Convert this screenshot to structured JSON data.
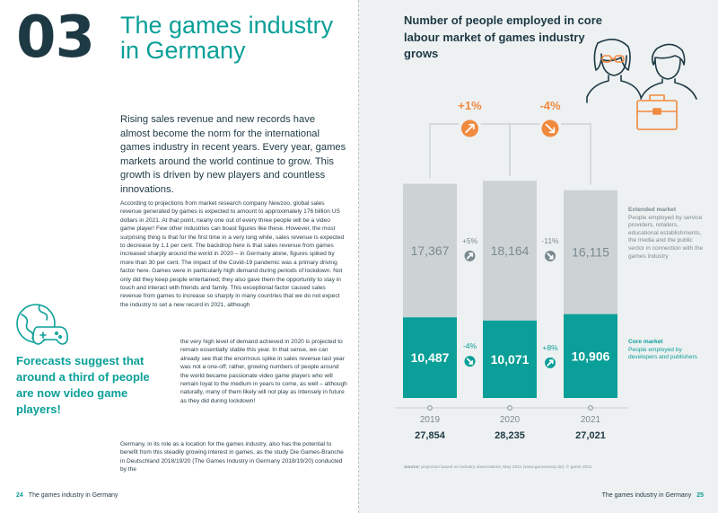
{
  "left_page": {
    "chapter_number": "03",
    "chapter_title": "The games industry in Germany",
    "lead": "Rising sales revenue and new records have almost become the norm for the international games industry in recent years. Every year, games markets around the world continue to grow. This growth is driven by new players and countless innovations.",
    "body_1": "According to projections from market research company Newzoo, global sales revenue generated by games is expected to amount to approximately 176 billion US dollars in 2021. At that point, nearly one out of every three people will be a video game player! Few other industries can boast figures like these. However, the most surprising thing is that for the first time in a very long while, sales revenue is expected to decrease by 1.1 per cent. The backdrop here is that sales revenue from games increased sharply around the world in 2020 – in Germany alone, figures spiked by more than 30 per cent. The impact of the Covid-19 pandemic was a primary driving factor here. Games were in particularly high demand during periods of lockdown. Not only did they keep people entertained; they also gave them the opportunity to stay in touch and interact with friends and family. This exceptional factor caused sales revenue from games to increase so sharply in many countries that we do not expect the industry to set a new record in 2021, although",
    "body_2": "the very high level of demand achieved in 2020 is projected to remain essentially stable this year. In that sense, we can already see that the enormous spike in sales revenue last year was not a one-off; rather, growing numbers of people around the world became passionate video game players who will remain loyal to the medium in years to come, as well – although naturally, many of them likely will not play as intensely in future as they did during lockdown!",
    "body_3": "Germany, in its role as a location for the games industry, also has the potential to benefit from this steadily growing interest in games, as the study Die Games-Branche in Deutschland 2018/19/20 (The Games Industry in Germany 2018/19/20) conducted by the",
    "pull_quote": "Forecasts suggest that around a third of people are now video game players!",
    "footer_page": "24",
    "footer_text": "The games industry in Germany"
  },
  "right_page": {
    "footer_page": "25",
    "footer_text": "The games industry in Germany",
    "legend_extended_title": "Extended market",
    "legend_extended_desc": "People employed by service providers, retailers, educational establishments, the media and the public sector in connection with the games industry",
    "legend_core_title": "Core market",
    "legend_core_desc": "People employed by developers and publishers",
    "source_label": "Source:",
    "source_text": "projection based on industry observations; May 2021 (www.gameontop.de); © game 2021"
  },
  "colors": {
    "teal": "#0a9f98",
    "grey_bar": "#cdd3d5",
    "navy": "#1d3944",
    "orange": "#f08a3e",
    "bg_right": "#eef1f2"
  },
  "chart_data": {
    "type": "bar",
    "stacked": true,
    "title": "Number of people employed in core labour market of games industry grows",
    "categories": [
      "2019",
      "2020",
      "2021"
    ],
    "series": [
      {
        "name": "Core market",
        "values": [
          10487,
          10071,
          10906
        ]
      },
      {
        "name": "Extended market",
        "values": [
          17367,
          18164,
          16115
        ]
      }
    ],
    "totals": [
      "27,854",
      "28,235",
      "27,021"
    ],
    "core_labels": [
      "10,487",
      "10,071",
      "10,906"
    ],
    "extended_labels": [
      "17,367",
      "18,164",
      "16,115"
    ],
    "total_changes": [
      "+1%",
      "-4%"
    ],
    "extended_changes": [
      "+5%",
      "-11%"
    ],
    "core_changes": [
      "-4%",
      "+8%"
    ],
    "change_directions": {
      "total": [
        "up",
        "down"
      ],
      "extended": [
        "up",
        "down"
      ],
      "core": [
        "down",
        "up"
      ]
    }
  }
}
